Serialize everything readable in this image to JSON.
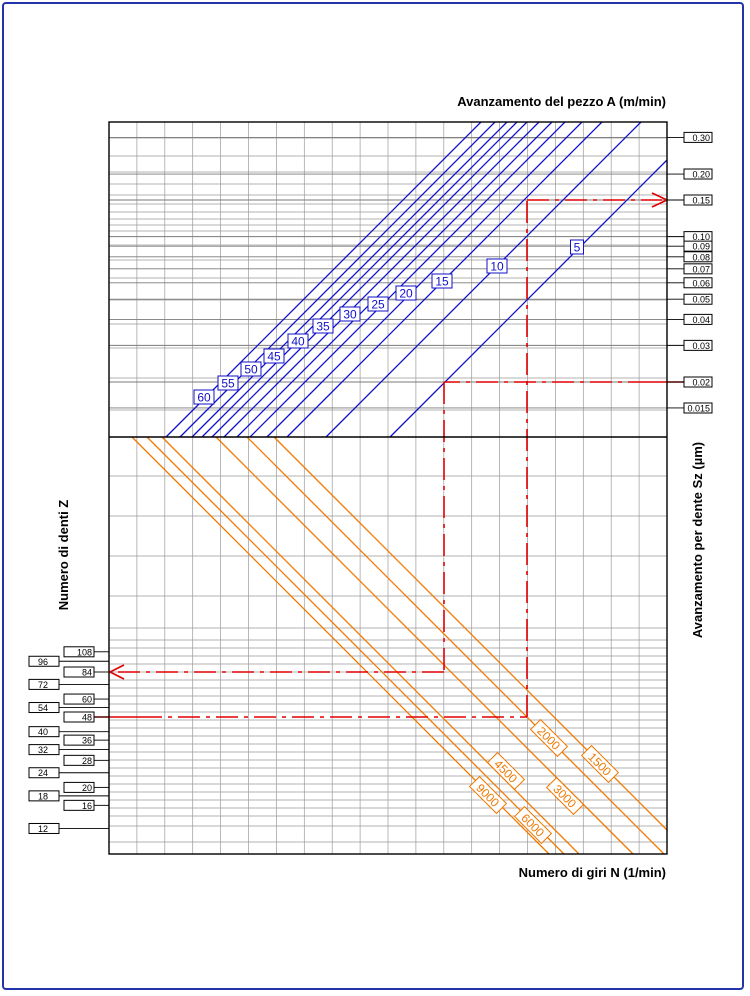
{
  "chart_data": {
    "type": "line",
    "title_top": "Avanzamento del pezzo A (m/min)",
    "xlabel": "Numero di giri N (1/min)",
    "ylabel_right": "Avanzamento per dente Sz (µm)",
    "ylabel_left": "Numero di denti Z",
    "grid": true,
    "sz_ticks": [
      "0.30",
      "0.20",
      "0.15",
      "0.10",
      "0.09",
      "0.08",
      "0.07",
      "0.06",
      "0.05",
      "0.04",
      "0.03",
      "0.02",
      "0.015"
    ],
    "sz_tick_values": [
      0.3,
      0.2,
      0.15,
      0.1,
      0.09,
      0.08,
      0.07,
      0.06,
      0.05,
      0.04,
      0.03,
      0.02,
      0.015
    ],
    "z_ticks_inner": [
      "108",
      "84",
      "60",
      "48",
      "36",
      "28",
      "20",
      "16"
    ],
    "z_ticks_inner_values": [
      108,
      84,
      60,
      48,
      36,
      28,
      20,
      16
    ],
    "z_ticks_outer": [
      "96",
      "72",
      "54",
      "40",
      "32",
      "24",
      "18",
      "12"
    ],
    "z_ticks_outer_values": [
      96,
      72,
      54,
      40,
      32,
      24,
      18,
      12
    ],
    "feed_rate_series": [
      {
        "name": "5",
        "value": 5
      },
      {
        "name": "10",
        "value": 10
      },
      {
        "name": "15",
        "value": 15
      },
      {
        "name": "20",
        "value": 20
      },
      {
        "name": "25",
        "value": 25
      },
      {
        "name": "30",
        "value": 30
      },
      {
        "name": "35",
        "value": 35
      },
      {
        "name": "40",
        "value": 40
      },
      {
        "name": "45",
        "value": 45
      },
      {
        "name": "50",
        "value": 50
      },
      {
        "name": "55",
        "value": 55
      },
      {
        "name": "60",
        "value": 60
      }
    ],
    "rpm_series": [
      {
        "name": "1500",
        "value": 1500
      },
      {
        "name": "2000",
        "value": 2000
      },
      {
        "name": "3000",
        "value": 3000
      },
      {
        "name": "4500",
        "value": 4500
      },
      {
        "name": "6000",
        "value": 6000
      },
      {
        "name": "9000",
        "value": 9000
      }
    ],
    "example_paths": [
      {
        "z": 48,
        "sz": 0.15
      },
      {
        "z": 84,
        "sz": 0.02
      }
    ],
    "colors": {
      "feed_lines": "#1010c8",
      "rpm_lines": "#f07800",
      "example_paths": "#e00000",
      "grid": "#9a9a9a",
      "frame": "#2433a8"
    }
  }
}
